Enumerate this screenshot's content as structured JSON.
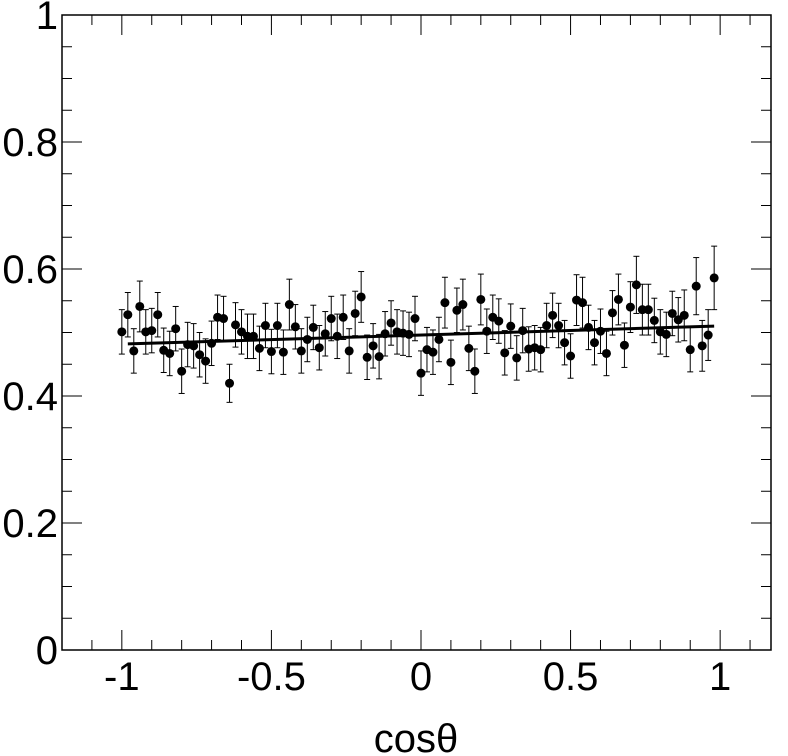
{
  "chart_data": {
    "type": "scatter",
    "title": "",
    "xlabel": "cosθ",
    "ylabel": "",
    "xlim": [
      -1.2,
      1.17
    ],
    "ylim": [
      0,
      1
    ],
    "x_ticks": [
      -1,
      -0.5,
      0,
      0.5,
      1
    ],
    "x_tick_labels": [
      "-1",
      "-0.5",
      "0",
      "0.5",
      "1"
    ],
    "y_ticks": [
      0,
      0.2,
      0.4,
      0.6,
      0.8,
      1
    ],
    "y_tick_labels": [
      "0",
      "0.2",
      "0.4",
      "0.6",
      "0.8",
      "1"
    ],
    "grid": false,
    "legend": "none",
    "marker_color": "#000000",
    "series": [
      {
        "x": [
          -1,
          -0.98,
          -0.96,
          -0.94,
          -0.92,
          -0.9,
          -0.88,
          -0.86,
          -0.84,
          -0.82,
          -0.8,
          -0.78,
          -0.76,
          -0.74,
          -0.72,
          -0.7,
          -0.68,
          -0.66,
          -0.64,
          -0.62,
          -0.6,
          -0.58,
          -0.56,
          -0.54,
          -0.52,
          -0.5,
          -0.48,
          -0.46,
          -0.44,
          -0.42,
          -0.4,
          -0.38,
          -0.36,
          -0.34,
          -0.32,
          -0.3,
          -0.28,
          -0.26,
          -0.24,
          -0.22,
          -0.2,
          -0.18,
          -0.16,
          -0.14,
          -0.12,
          -0.1,
          -0.08,
          -0.06,
          -0.04,
          -0.02,
          0,
          0.02,
          0.04,
          0.06,
          0.08,
          0.1,
          0.12,
          0.14,
          0.16,
          0.18,
          0.2,
          0.22,
          0.24,
          0.26,
          0.28,
          0.3,
          0.32,
          0.34,
          0.36,
          0.38,
          0.4,
          0.42,
          0.44,
          0.46,
          0.48,
          0.5,
          0.52,
          0.54,
          0.56,
          0.58,
          0.6,
          0.62,
          0.64,
          0.66,
          0.68,
          0.7,
          0.72,
          0.74,
          0.76,
          0.78,
          0.8,
          0.82,
          0.84,
          0.86,
          0.88,
          0.9,
          0.92,
          0.94,
          0.96,
          0.98
        ],
        "y": [
          0.501,
          0.528,
          0.471,
          0.541,
          0.501,
          0.503,
          0.528,
          0.472,
          0.467,
          0.506,
          0.439,
          0.481,
          0.479,
          0.465,
          0.455,
          0.483,
          0.524,
          0.522,
          0.42,
          0.512,
          0.501,
          0.494,
          0.494,
          0.475,
          0.511,
          0.47,
          0.511,
          0.469,
          0.544,
          0.509,
          0.471,
          0.489,
          0.508,
          0.476,
          0.498,
          0.522,
          0.494,
          0.524,
          0.471,
          0.53,
          0.556,
          0.461,
          0.479,
          0.462,
          0.498,
          0.515,
          0.501,
          0.499,
          0.497,
          0.522,
          0.436,
          0.473,
          0.469,
          0.489,
          0.547,
          0.453,
          0.535,
          0.544,
          0.475,
          0.439,
          0.552,
          0.502,
          0.524,
          0.518,
          0.468,
          0.51,
          0.46,
          0.503,
          0.474,
          0.476,
          0.473,
          0.511,
          0.527,
          0.511,
          0.484,
          0.463,
          0.551,
          0.547,
          0.508,
          0.484,
          0.502,
          0.467,
          0.531,
          0.552,
          0.48,
          0.54,
          0.575,
          0.536,
          0.536,
          0.519,
          0.501,
          0.497,
          0.53,
          0.52,
          0.527,
          0.473,
          0.573,
          0.479,
          0.496,
          0.586
        ],
        "y_err": [
          0.035,
          0.035,
          0.035,
          0.04,
          0.035,
          0.035,
          0.035,
          0.035,
          0.035,
          0.035,
          0.035,
          0.035,
          0.035,
          0.035,
          0.035,
          0.035,
          0.035,
          0.035,
          0.03,
          0.035,
          0.035,
          0.035,
          0.035,
          0.035,
          0.035,
          0.035,
          0.035,
          0.035,
          0.04,
          0.035,
          0.035,
          0.035,
          0.035,
          0.035,
          0.035,
          0.035,
          0.035,
          0.035,
          0.035,
          0.035,
          0.04,
          0.035,
          0.035,
          0.035,
          0.035,
          0.035,
          0.035,
          0.035,
          0.035,
          0.035,
          0.035,
          0.035,
          0.035,
          0.035,
          0.04,
          0.035,
          0.035,
          0.04,
          0.035,
          0.035,
          0.04,
          0.035,
          0.035,
          0.035,
          0.035,
          0.035,
          0.035,
          0.035,
          0.035,
          0.035,
          0.035,
          0.035,
          0.035,
          0.035,
          0.035,
          0.035,
          0.04,
          0.04,
          0.035,
          0.035,
          0.035,
          0.035,
          0.035,
          0.04,
          0.035,
          0.04,
          0.045,
          0.04,
          0.04,
          0.035,
          0.035,
          0.035,
          0.035,
          0.035,
          0.04,
          0.035,
          0.045,
          0.04,
          0.04,
          0.05
        ]
      },
      {
        "x": [
          -0.98,
          0.98
        ],
        "y": [
          0.482,
          0.51
        ]
      }
    ]
  }
}
